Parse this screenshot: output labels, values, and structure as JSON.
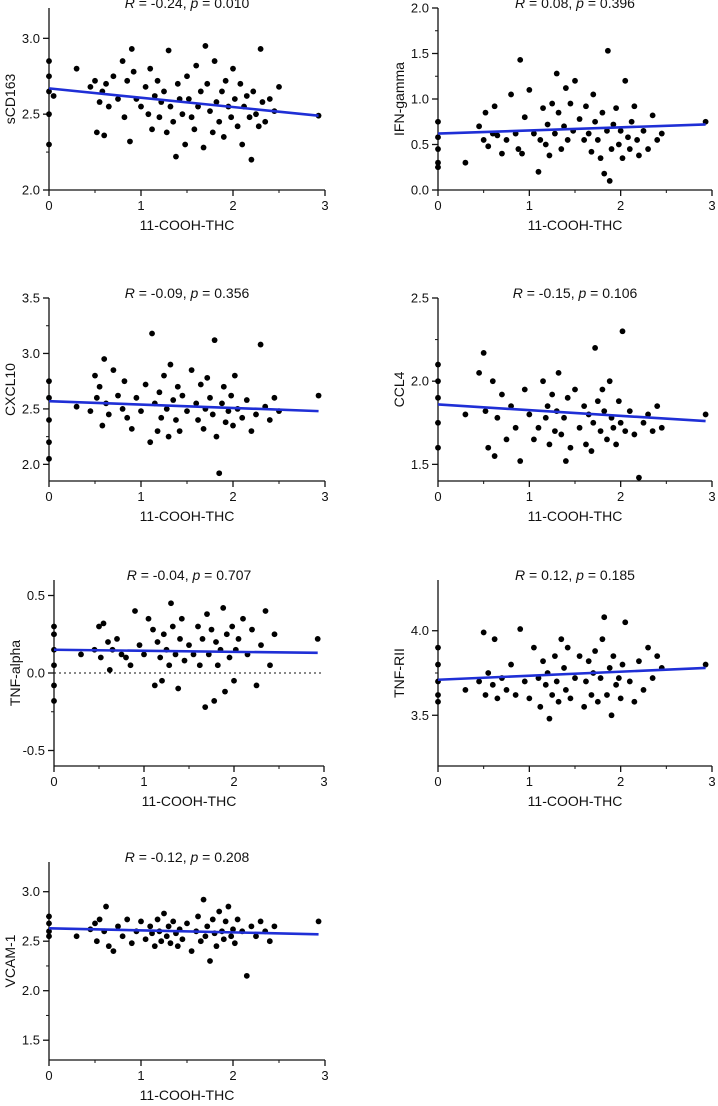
{
  "figure": {
    "background": "#ffffff",
    "fit_color": "#1f2fd6",
    "point_color": "#000000"
  },
  "chart_data": [
    {
      "type": "scatter",
      "stat": {
        "r": "-0.24",
        "p": "0.010"
      },
      "xlabel": "11-COOH-THC",
      "ylabel": "sCD163",
      "xlim": [
        0,
        3
      ],
      "ylim": [
        2.0,
        3.2
      ],
      "xticks": [
        0,
        1,
        2,
        3
      ],
      "yticks": [
        2.0,
        2.5,
        3.0
      ],
      "fit": {
        "x": [
          0,
          2.93
        ],
        "y": [
          2.67,
          2.49
        ]
      },
      "points": {
        "x": [
          0,
          0,
          0,
          0,
          0,
          0.05,
          0.3,
          0.45,
          0.5,
          0.52,
          0.55,
          0.58,
          0.6,
          0.62,
          0.65,
          0.7,
          0.75,
          0.8,
          0.82,
          0.85,
          0.88,
          0.9,
          0.92,
          0.95,
          1.0,
          1.05,
          1.08,
          1.1,
          1.12,
          1.15,
          1.18,
          1.2,
          1.22,
          1.25,
          1.28,
          1.3,
          1.32,
          1.35,
          1.38,
          1.4,
          1.42,
          1.45,
          1.48,
          1.5,
          1.52,
          1.55,
          1.58,
          1.6,
          1.62,
          1.65,
          1.68,
          1.7,
          1.72,
          1.75,
          1.78,
          1.8,
          1.82,
          1.85,
          1.88,
          1.9,
          1.92,
          1.95,
          1.98,
          2.0,
          2.02,
          2.05,
          2.08,
          2.1,
          2.12,
          2.15,
          2.18,
          2.2,
          2.22,
          2.25,
          2.28,
          2.3,
          2.32,
          2.35,
          2.4,
          2.45,
          2.5,
          2.93
        ],
        "y": [
          2.85,
          2.75,
          2.65,
          2.5,
          2.3,
          2.62,
          2.8,
          2.68,
          2.72,
          2.38,
          2.58,
          2.65,
          2.36,
          2.7,
          2.55,
          2.75,
          2.6,
          2.85,
          2.48,
          2.72,
          2.32,
          2.93,
          2.78,
          2.6,
          2.55,
          2.68,
          2.5,
          2.8,
          2.4,
          2.62,
          2.72,
          2.48,
          2.58,
          2.65,
          2.38,
          2.92,
          2.55,
          2.45,
          2.22,
          2.7,
          2.6,
          2.5,
          2.3,
          2.75,
          2.6,
          2.48,
          2.4,
          2.82,
          2.55,
          2.65,
          2.28,
          2.95,
          2.7,
          2.52,
          2.38,
          2.85,
          2.58,
          2.45,
          2.65,
          2.35,
          2.72,
          2.55,
          2.48,
          2.8,
          2.6,
          2.42,
          2.7,
          2.3,
          2.55,
          2.62,
          2.48,
          2.2,
          2.65,
          2.5,
          2.42,
          2.93,
          2.58,
          2.45,
          2.6,
          2.52,
          2.68,
          2.49
        ]
      }
    },
    {
      "type": "scatter",
      "stat": {
        "r": "0.08",
        "p": "0.396"
      },
      "xlabel": "11-COOH-THC",
      "ylabel": "IFN-gamma",
      "xlim": [
        0,
        3
      ],
      "ylim": [
        0.0,
        2.0
      ],
      "xticks": [
        0,
        1,
        2,
        3
      ],
      "yticks": [
        0.0,
        0.5,
        1.0,
        1.5,
        2.0
      ],
      "fit": {
        "x": [
          0,
          2.93
        ],
        "y": [
          0.62,
          0.72
        ]
      },
      "points": {
        "x": [
          0,
          0,
          0,
          0,
          0,
          0.3,
          0.45,
          0.5,
          0.52,
          0.55,
          0.6,
          0.62,
          0.65,
          0.7,
          0.75,
          0.8,
          0.85,
          0.88,
          0.9,
          0.92,
          0.95,
          1.0,
          1.05,
          1.1,
          1.12,
          1.15,
          1.18,
          1.2,
          1.22,
          1.25,
          1.28,
          1.3,
          1.32,
          1.35,
          1.38,
          1.4,
          1.42,
          1.45,
          1.48,
          1.5,
          1.55,
          1.6,
          1.62,
          1.65,
          1.68,
          1.7,
          1.72,
          1.75,
          1.78,
          1.8,
          1.82,
          1.85,
          1.86,
          1.88,
          1.9,
          1.92,
          1.95,
          1.98,
          2.0,
          2.02,
          2.05,
          2.08,
          2.1,
          2.12,
          2.15,
          2.18,
          2.2,
          2.25,
          2.3,
          2.35,
          2.4,
          2.45,
          2.93
        ],
        "y": [
          0.75,
          0.58,
          0.45,
          0.3,
          0.25,
          0.3,
          0.7,
          0.55,
          0.85,
          0.48,
          0.62,
          0.92,
          0.6,
          0.4,
          0.55,
          1.05,
          0.62,
          0.45,
          1.43,
          0.4,
          0.8,
          1.1,
          0.62,
          0.2,
          0.55,
          0.9,
          0.5,
          0.72,
          0.38,
          0.95,
          0.62,
          1.28,
          0.85,
          0.45,
          0.7,
          1.12,
          0.55,
          0.95,
          0.65,
          1.2,
          0.78,
          0.55,
          0.92,
          0.62,
          0.42,
          1.05,
          0.75,
          0.55,
          0.35,
          0.85,
          0.18,
          0.65,
          1.53,
          0.1,
          0.45,
          0.72,
          0.9,
          0.5,
          0.65,
          0.35,
          1.2,
          0.58,
          0.45,
          0.75,
          0.92,
          0.55,
          0.38,
          0.65,
          0.45,
          0.82,
          0.55,
          0.62,
          0.75
        ]
      }
    },
    {
      "type": "scatter",
      "stat": {
        "r": "-0.09",
        "p": "0.356"
      },
      "xlabel": "11-COOH-THC",
      "ylabel": "CXCL10",
      "xlim": [
        0,
        3
      ],
      "ylim": [
        1.85,
        3.5
      ],
      "xticks": [
        0,
        1,
        2,
        3
      ],
      "yticks": [
        2.0,
        2.5,
        3.0,
        3.5
      ],
      "fit": {
        "x": [
          0,
          2.93
        ],
        "y": [
          2.57,
          2.48
        ]
      },
      "points": {
        "x": [
          0,
          0,
          0,
          0,
          0,
          0.3,
          0.45,
          0.5,
          0.52,
          0.55,
          0.58,
          0.6,
          0.62,
          0.65,
          0.7,
          0.75,
          0.8,
          0.82,
          0.85,
          0.9,
          0.95,
          1.0,
          1.05,
          1.1,
          1.12,
          1.15,
          1.18,
          1.2,
          1.22,
          1.25,
          1.28,
          1.3,
          1.32,
          1.35,
          1.38,
          1.4,
          1.42,
          1.45,
          1.5,
          1.55,
          1.6,
          1.62,
          1.65,
          1.68,
          1.7,
          1.72,
          1.75,
          1.78,
          1.8,
          1.82,
          1.85,
          1.88,
          1.9,
          1.92,
          1.95,
          1.98,
          2.0,
          2.02,
          2.05,
          2.1,
          2.15,
          2.2,
          2.25,
          2.3,
          2.35,
          2.4,
          2.45,
          2.5,
          2.93
        ],
        "y": [
          2.75,
          2.6,
          2.4,
          2.2,
          2.05,
          2.52,
          2.48,
          2.8,
          2.6,
          2.7,
          2.35,
          2.95,
          2.55,
          2.45,
          2.85,
          2.62,
          2.5,
          2.75,
          2.42,
          2.32,
          2.6,
          2.48,
          2.72,
          2.2,
          3.18,
          2.55,
          2.3,
          2.65,
          2.42,
          2.8,
          2.5,
          2.25,
          2.9,
          2.58,
          2.4,
          2.7,
          2.3,
          2.62,
          2.48,
          2.85,
          2.55,
          2.4,
          2.72,
          2.32,
          2.5,
          2.78,
          2.6,
          2.45,
          3.12,
          2.25,
          1.92,
          2.55,
          2.7,
          2.38,
          2.48,
          2.62,
          2.35,
          2.8,
          2.5,
          2.42,
          2.58,
          2.3,
          2.45,
          3.08,
          2.52,
          2.4,
          2.6,
          2.48,
          2.62
        ]
      }
    },
    {
      "type": "scatter",
      "stat": {
        "r": "-0.15",
        "p": "0.106"
      },
      "xlabel": "11-COOH-THC",
      "ylabel": "CCL4",
      "xlim": [
        0,
        3
      ],
      "ylim": [
        1.4,
        2.5
      ],
      "xticks": [
        0,
        1,
        2,
        3
      ],
      "yticks": [
        1.5,
        2.0,
        2.5
      ],
      "fit": {
        "x": [
          0,
          2.93
        ],
        "y": [
          1.86,
          1.76
        ]
      },
      "points": {
        "x": [
          0,
          0,
          0,
          0,
          0,
          0.3,
          0.45,
          0.5,
          0.52,
          0.55,
          0.6,
          0.62,
          0.65,
          0.7,
          0.75,
          0.8,
          0.85,
          0.9,
          0.95,
          1.0,
          1.05,
          1.1,
          1.15,
          1.18,
          1.2,
          1.22,
          1.25,
          1.28,
          1.3,
          1.32,
          1.35,
          1.38,
          1.4,
          1.42,
          1.45,
          1.5,
          1.55,
          1.6,
          1.62,
          1.65,
          1.68,
          1.7,
          1.72,
          1.75,
          1.78,
          1.8,
          1.82,
          1.85,
          1.88,
          1.9,
          1.92,
          1.95,
          1.98,
          2.0,
          2.02,
          2.05,
          2.1,
          2.15,
          2.2,
          2.25,
          2.3,
          2.35,
          2.4,
          2.45,
          2.93
        ],
        "y": [
          2.1,
          2.0,
          1.9,
          1.75,
          1.6,
          1.8,
          2.05,
          2.17,
          1.82,
          1.6,
          2.0,
          1.55,
          1.78,
          1.92,
          1.65,
          1.85,
          1.72,
          1.52,
          1.95,
          1.8,
          1.65,
          1.72,
          2.0,
          1.78,
          1.85,
          1.62,
          1.92,
          1.7,
          1.82,
          2.05,
          1.68,
          1.78,
          1.52,
          1.9,
          1.6,
          1.95,
          1.72,
          1.85,
          1.62,
          1.8,
          1.58,
          1.75,
          2.2,
          1.88,
          1.7,
          1.95,
          1.82,
          1.65,
          2.0,
          1.78,
          1.72,
          1.62,
          1.88,
          1.75,
          2.3,
          1.7,
          1.82,
          1.68,
          1.42,
          1.75,
          1.8,
          1.7,
          1.85,
          1.72,
          1.8
        ]
      }
    },
    {
      "type": "scatter",
      "stat": {
        "r": "-0.04",
        "p": "0.707"
      },
      "xlabel": "11-COOH-THC",
      "ylabel": "TNF-alpha",
      "xlim": [
        0,
        3
      ],
      "ylim": [
        -0.6,
        0.6
      ],
      "xticks": [
        0,
        1,
        2,
        3
      ],
      "yticks": [
        -0.5,
        0.0,
        0.5
      ],
      "reference_line": 0.0,
      "fit": {
        "x": [
          0,
          2.93
        ],
        "y": [
          0.15,
          0.13
        ]
      },
      "points": {
        "x": [
          0,
          0,
          0,
          0,
          0,
          0,
          0.3,
          0.45,
          0.5,
          0.52,
          0.55,
          0.6,
          0.62,
          0.65,
          0.7,
          0.75,
          0.8,
          0.85,
          0.9,
          0.95,
          1.0,
          1.05,
          1.1,
          1.12,
          1.15,
          1.18,
          1.2,
          1.22,
          1.25,
          1.28,
          1.3,
          1.32,
          1.35,
          1.38,
          1.4,
          1.42,
          1.45,
          1.5,
          1.55,
          1.6,
          1.62,
          1.65,
          1.68,
          1.7,
          1.72,
          1.75,
          1.78,
          1.8,
          1.82,
          1.85,
          1.88,
          1.9,
          1.92,
          1.95,
          1.98,
          2.0,
          2.02,
          2.05,
          2.1,
          2.15,
          2.2,
          2.25,
          2.3,
          2.35,
          2.4,
          2.45,
          2.93
        ],
        "y": [
          0.3,
          0.25,
          0.15,
          0.05,
          -0.08,
          -0.18,
          0.12,
          0.15,
          0.3,
          0.1,
          0.32,
          0.2,
          0.02,
          0.15,
          0.22,
          0.12,
          0.1,
          0.05,
          0.4,
          0.18,
          0.12,
          0.35,
          0.28,
          -0.08,
          0.2,
          0.1,
          -0.05,
          0.25,
          0.15,
          0.05,
          0.45,
          0.3,
          0.12,
          -0.1,
          0.22,
          0.35,
          0.08,
          0.18,
          0.12,
          0.3,
          0.05,
          0.22,
          -0.22,
          0.38,
          0.12,
          0.28,
          -0.18,
          0.2,
          0.05,
          0.15,
          0.42,
          -0.12,
          0.25,
          0.1,
          0.3,
          -0.05,
          0.15,
          0.22,
          0.35,
          0.12,
          0.28,
          -0.08,
          0.18,
          0.4,
          0.05,
          0.25,
          0.22
        ]
      }
    },
    {
      "type": "scatter",
      "stat": {
        "r": "0.12",
        "p": "0.185"
      },
      "xlabel": "11-COOH-THC",
      "ylabel": "TNF-RII",
      "xlim": [
        0,
        3
      ],
      "ylim": [
        3.2,
        4.3
      ],
      "xticks": [
        0,
        1,
        2,
        3
      ],
      "yticks": [
        3.5,
        4.0
      ],
      "fit": {
        "x": [
          0,
          2.93
        ],
        "y": [
          3.71,
          3.78
        ]
      },
      "points": {
        "x": [
          0,
          0,
          0,
          0,
          0,
          0.3,
          0.45,
          0.5,
          0.52,
          0.55,
          0.6,
          0.62,
          0.65,
          0.7,
          0.75,
          0.8,
          0.85,
          0.9,
          0.95,
          1.0,
          1.05,
          1.1,
          1.12,
          1.15,
          1.18,
          1.2,
          1.22,
          1.25,
          1.28,
          1.3,
          1.32,
          1.35,
          1.38,
          1.4,
          1.42,
          1.45,
          1.5,
          1.55,
          1.6,
          1.62,
          1.65,
          1.68,
          1.7,
          1.72,
          1.75,
          1.78,
          1.8,
          1.82,
          1.85,
          1.88,
          1.9,
          1.92,
          1.95,
          1.98,
          2.0,
          2.02,
          2.05,
          2.1,
          2.15,
          2.2,
          2.25,
          2.3,
          2.35,
          2.4,
          2.45,
          2.93
        ],
        "y": [
          3.9,
          3.8,
          3.7,
          3.62,
          3.58,
          3.65,
          3.7,
          3.99,
          3.62,
          3.75,
          3.68,
          3.95,
          3.6,
          3.72,
          3.65,
          3.8,
          3.62,
          4.01,
          3.7,
          3.6,
          3.9,
          3.72,
          3.55,
          3.82,
          3.68,
          3.75,
          3.48,
          3.62,
          3.85,
          3.7,
          3.58,
          3.95,
          3.78,
          3.65,
          3.9,
          3.6,
          3.72,
          3.85,
          3.55,
          3.7,
          3.82,
          3.62,
          3.75,
          3.88,
          3.58,
          3.72,
          3.95,
          4.08,
          3.62,
          3.78,
          3.5,
          3.85,
          3.68,
          3.72,
          3.6,
          3.8,
          4.05,
          3.7,
          3.58,
          3.82,
          3.65,
          3.9,
          3.72,
          3.85,
          3.78,
          3.8
        ]
      }
    },
    {
      "type": "scatter",
      "stat": {
        "r": "-0.12",
        "p": "0.208"
      },
      "xlabel": "11-COOH-THC",
      "ylabel": "VCAM-1",
      "xlim": [
        0,
        3
      ],
      "ylim": [
        1.3,
        3.3
      ],
      "xticks": [
        0,
        1,
        2,
        3
      ],
      "yticks": [
        1.5,
        2.0,
        2.5,
        3.0
      ],
      "fit": {
        "x": [
          0,
          2.93
        ],
        "y": [
          2.63,
          2.57
        ]
      },
      "points": {
        "x": [
          0,
          0,
          0,
          0,
          0.3,
          0.45,
          0.5,
          0.52,
          0.55,
          0.6,
          0.62,
          0.65,
          0.7,
          0.75,
          0.8,
          0.85,
          0.9,
          0.95,
          1.0,
          1.05,
          1.1,
          1.12,
          1.15,
          1.18,
          1.2,
          1.22,
          1.25,
          1.28,
          1.3,
          1.32,
          1.35,
          1.38,
          1.4,
          1.42,
          1.45,
          1.5,
          1.55,
          1.6,
          1.62,
          1.65,
          1.68,
          1.7,
          1.72,
          1.75,
          1.78,
          1.8,
          1.82,
          1.85,
          1.88,
          1.9,
          1.92,
          1.95,
          1.98,
          2.0,
          2.02,
          2.05,
          2.1,
          2.15,
          2.2,
          2.25,
          2.3,
          2.35,
          2.4,
          2.45,
          2.93
        ],
        "y": [
          2.75,
          2.68,
          2.6,
          2.55,
          2.55,
          2.62,
          2.68,
          2.5,
          2.72,
          2.6,
          2.85,
          2.45,
          2.4,
          2.65,
          2.55,
          2.72,
          2.48,
          2.6,
          2.7,
          2.52,
          2.65,
          2.58,
          2.45,
          2.72,
          2.6,
          2.5,
          2.78,
          2.55,
          2.65,
          2.48,
          2.7,
          2.58,
          2.45,
          2.62,
          2.52,
          2.68,
          2.4,
          2.6,
          2.75,
          2.5,
          2.92,
          2.55,
          2.65,
          2.3,
          2.72,
          2.58,
          2.45,
          2.8,
          2.6,
          2.52,
          2.7,
          2.85,
          2.55,
          2.62,
          2.48,
          2.72,
          2.6,
          2.15,
          2.65,
          2.55,
          2.7,
          2.6,
          2.5,
          2.65,
          2.7
        ]
      }
    }
  ]
}
